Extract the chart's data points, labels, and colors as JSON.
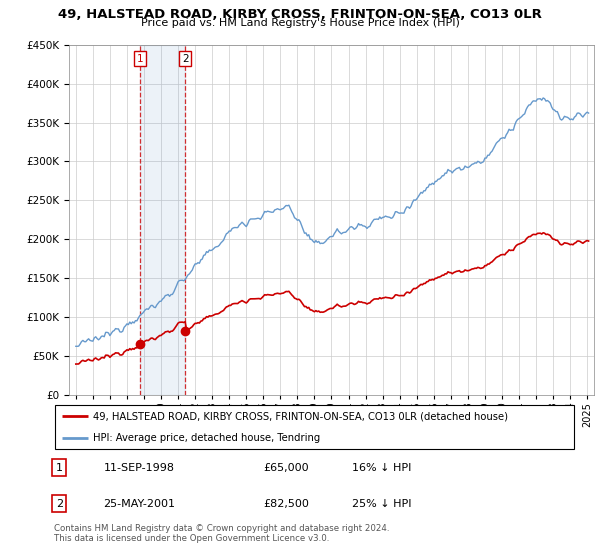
{
  "title": "49, HALSTEAD ROAD, KIRBY CROSS, FRINTON-ON-SEA, CO13 0LR",
  "subtitle": "Price paid vs. HM Land Registry's House Price Index (HPI)",
  "legend_line1": "49, HALSTEAD ROAD, KIRBY CROSS, FRINTON-ON-SEA, CO13 0LR (detached house)",
  "legend_line2": "HPI: Average price, detached house, Tendring",
  "transaction1_date": "11-SEP-1998",
  "transaction1_price": "£65,000",
  "transaction1_hpi": "16% ↓ HPI",
  "transaction2_date": "25-MAY-2001",
  "transaction2_price": "£82,500",
  "transaction2_hpi": "25% ↓ HPI",
  "footnote": "Contains HM Land Registry data © Crown copyright and database right 2024.\nThis data is licensed under the Open Government Licence v3.0.",
  "red_color": "#cc0000",
  "blue_color": "#6699cc",
  "grid_color": "#cccccc",
  "transaction1_x": 1998.75,
  "transaction2_x": 2001.42,
  "price_t1": 65000,
  "price_t2": 82500,
  "ylim_min": 0,
  "ylim_max": 450000,
  "xlim_min": 1994.6,
  "xlim_max": 2025.4
}
